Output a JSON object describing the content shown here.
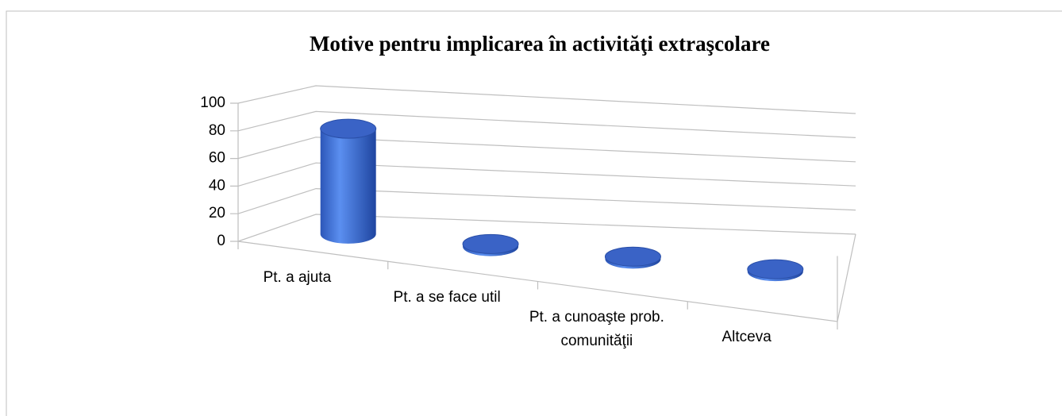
{
  "chart_data": {
    "type": "bar3d",
    "title": "Motive pentru implicarea în activităţi extraşcolare",
    "categories": [
      "Pt. a ajuta",
      "Pt. a se face util",
      "Pt. a cunoaşte prob. comunităţii",
      "Altceva"
    ],
    "values": [
      80,
      2,
      2,
      2
    ],
    "color": "#4472c4",
    "ylim": [
      0,
      100
    ],
    "yticks": [
      0,
      20,
      40,
      60,
      80,
      100
    ],
    "grid": true
  }
}
